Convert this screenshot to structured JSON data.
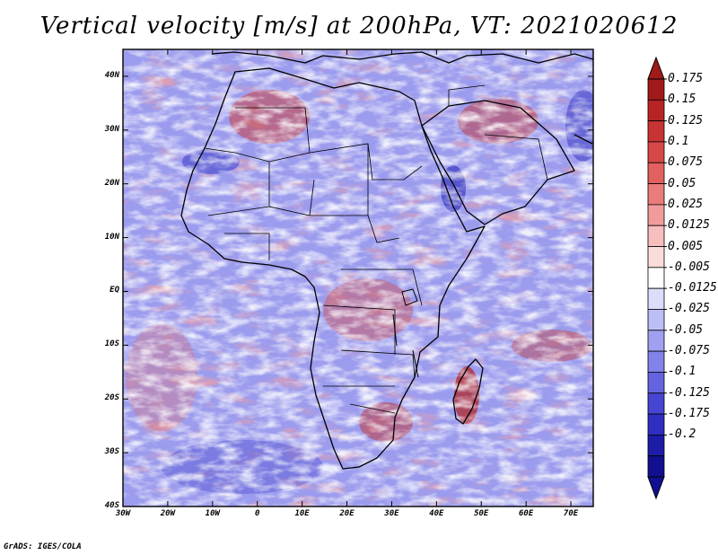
{
  "title": "Vertical velocity [m/s] at 200hPa, VT: 2021020612",
  "credit": "GrADS: IGES/COLA",
  "map": {
    "lon_range": [
      -30,
      75
    ],
    "lat_range": [
      -40,
      45
    ],
    "field": "Vertical velocity",
    "units": "m/s",
    "level": "200hPa",
    "valid_time": "2021020612"
  },
  "lat_ticks": [
    {
      "lat": 40,
      "label": "40N"
    },
    {
      "lat": 30,
      "label": "30N"
    },
    {
      "lat": 20,
      "label": "20N"
    },
    {
      "lat": 10,
      "label": "10N"
    },
    {
      "lat": 0,
      "label": "EQ"
    },
    {
      "lat": -10,
      "label": "10S"
    },
    {
      "lat": -20,
      "label": "20S"
    },
    {
      "lat": -30,
      "label": "30S"
    },
    {
      "lat": -40,
      "label": "40S"
    }
  ],
  "lon_ticks": [
    {
      "lon": -30,
      "label": "30W"
    },
    {
      "lon": -20,
      "label": "20W"
    },
    {
      "lon": -10,
      "label": "10W"
    },
    {
      "lon": 0,
      "label": "0"
    },
    {
      "lon": 10,
      "label": "10E"
    },
    {
      "lon": 20,
      "label": "20E"
    },
    {
      "lon": 30,
      "label": "30E"
    },
    {
      "lon": 40,
      "label": "40E"
    },
    {
      "lon": 50,
      "label": "50E"
    },
    {
      "lon": 60,
      "label": "60E"
    },
    {
      "lon": 70,
      "label": "70E"
    }
  ],
  "colorbar": {
    "labels": [
      "0.175",
      "0.15",
      "0.125",
      "0.1",
      "0.075",
      "0.05",
      "0.025",
      "0.0125",
      "0.005",
      "-0.005",
      "-0.0125",
      "-0.025",
      "-0.05",
      "-0.075",
      "-0.1",
      "-0.125",
      "-0.175",
      "-0.2"
    ],
    "colors": [
      "#a01a1a",
      "#b82424",
      "#c83434",
      "#d84848",
      "#e26060",
      "#ea7c7c",
      "#f19c9c",
      "#f7bebe",
      "#fbdcdc",
      "#ffffff",
      "#dcdcfb",
      "#bebef7",
      "#a0a0f0",
      "#8282e8",
      "#6464e0",
      "#4646d2",
      "#2e2ec0",
      "#1c1ca6",
      "#101090"
    ],
    "max_color": "#a01a1a",
    "min_color": "#101090"
  }
}
